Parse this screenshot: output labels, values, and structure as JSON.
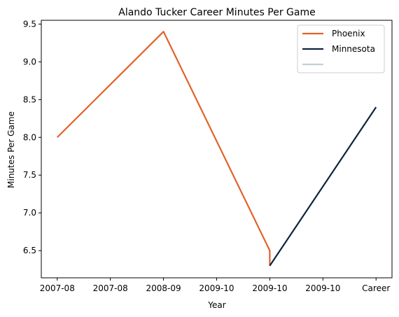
{
  "chart_data": {
    "type": "line",
    "title": "Alando Tucker Career Minutes Per Game",
    "xlabel": "Year",
    "ylabel": "Minutes Per Game",
    "x_tick_labels": [
      "2007-08",
      "2007-08",
      "2008-09",
      "2009-10",
      "2009-10",
      "2009-10",
      "Career"
    ],
    "x_tick_positions": [
      0,
      1,
      2,
      3,
      4,
      5,
      6
    ],
    "xlim": [
      -0.3,
      6.3
    ],
    "ylim": [
      6.14,
      9.55
    ],
    "y_ticks": [
      6.5,
      7.0,
      7.5,
      8.0,
      8.5,
      9.0,
      9.5
    ],
    "y_tick_labels": [
      "6.5",
      "7.0",
      "7.5",
      "8.0",
      "8.5",
      "9.0",
      "9.5"
    ],
    "grid": false,
    "legend_position": "top-right",
    "series": [
      {
        "name": "Phoenix",
        "color": "#E1622A",
        "points": [
          [
            0,
            8.0
          ],
          [
            2,
            9.4
          ],
          [
            4,
            6.5
          ],
          [
            4,
            6.3
          ]
        ]
      },
      {
        "name": "Minnesota",
        "color": "#0E2440",
        "points": [
          [
            4,
            6.3
          ],
          [
            6,
            8.4
          ]
        ]
      },
      {
        "name": "",
        "color": "#C4CED4",
        "points": []
      }
    ]
  }
}
